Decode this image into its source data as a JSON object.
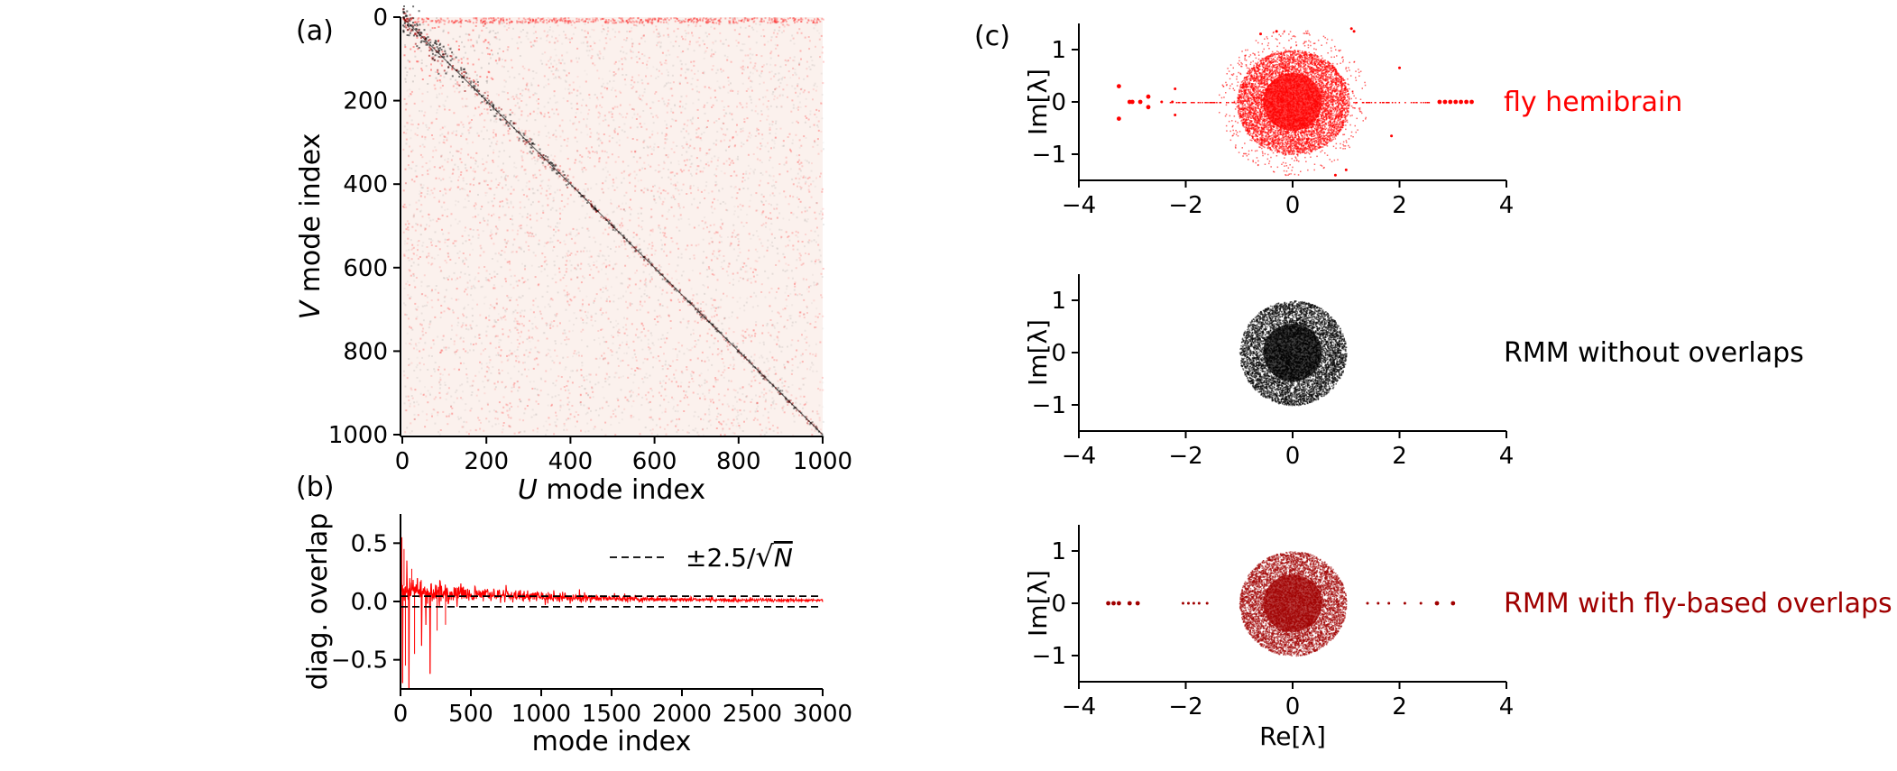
{
  "panels": {
    "a": {
      "label": "(a)"
    },
    "b": {
      "label": "(b)"
    },
    "c": {
      "label": "(c)"
    }
  },
  "colors": {
    "fly": "#ff0000",
    "rmm_none": "#000000",
    "rmm_fly": "#a00000",
    "heatmap_pos": "#ff0000",
    "heatmap_neg": "#000000"
  },
  "chart_data": [
    {
      "id": "a",
      "type": "heatmap",
      "xlabel_italic": "U",
      "xlabel_rest": " mode index",
      "ylabel_italic": "V",
      "ylabel_rest": " mode index",
      "xlim": [
        0,
        1000
      ],
      "ylim": [
        0,
        1000
      ],
      "xticks": [
        0,
        200,
        400,
        600,
        800,
        1000
      ],
      "yticks": [
        0,
        200,
        400,
        600,
        800,
        1000
      ],
      "description_of_values": "overlap matrix between U and V modes; strong diagonal band from (0,0) to (1000,1000), stronger near low indices"
    },
    {
      "id": "b",
      "type": "line",
      "xlabel": "mode index",
      "ylabel": "diag. overlap",
      "xlim": [
        0,
        3000
      ],
      "ylim": [
        -0.75,
        0.75
      ],
      "xticks": [
        0,
        500,
        1000,
        1500,
        2000,
        2500,
        3000
      ],
      "yticks": [
        -0.5,
        0.0,
        0.5
      ],
      "ytick_labels": [
        "−0.5",
        "0.0",
        "0.5"
      ],
      "threshold": 0.0456,
      "legend": {
        "label": "±2.5/√N",
        "prefix": "±2.5/",
        "var": "N",
        "placement": "upper right"
      },
      "series": [
        {
          "color": "#ff0000",
          "envelope": [
            [
              0,
              0.15
            ],
            [
              50,
              0.12
            ],
            [
              100,
              0.09
            ],
            [
              200,
              0.08
            ],
            [
              400,
              0.07
            ],
            [
              600,
              0.06
            ],
            [
              800,
              0.05
            ],
            [
              1000,
              0.04
            ],
            [
              1500,
              0.025
            ],
            [
              2000,
              0.015
            ],
            [
              3000,
              0.01
            ]
          ],
          "spikes": [
            [
              10,
              0.55
            ],
            [
              15,
              -0.7
            ],
            [
              25,
              0.45
            ],
            [
              35,
              -0.55
            ],
            [
              45,
              0.35
            ],
            [
              60,
              -0.75
            ],
            [
              80,
              0.28
            ],
            [
              100,
              -0.45
            ],
            [
              120,
              0.2
            ],
            [
              150,
              -0.38
            ],
            [
              180,
              -0.2
            ],
            [
              210,
              -0.62
            ],
            [
              260,
              -0.25
            ],
            [
              320,
              -0.2
            ]
          ]
        }
      ]
    },
    {
      "id": "c1",
      "type": "scatter",
      "name": "fly hemibrain",
      "color": "#ff0000",
      "ylabel": "Im[λ]",
      "xlim": [
        -4,
        4
      ],
      "ylim": [
        -1.5,
        1.5
      ],
      "xticks": [
        -4,
        -2,
        0,
        2,
        4
      ],
      "yticks": [
        -1,
        0,
        1
      ],
      "tick_labels_x": [
        "−4",
        "−2",
        "0",
        "2",
        "4"
      ],
      "tick_labels_y": [
        "−1",
        "0",
        "1"
      ],
      "bulk": {
        "center": [
          0,
          0
        ],
        "radius": 1.0
      },
      "outliers": [
        [
          -3.25,
          0.3
        ],
        [
          -3.25,
          -0.32
        ],
        [
          -3.05,
          0.0
        ],
        [
          -3.0,
          0.0
        ],
        [
          -2.85,
          0.0
        ],
        [
          -2.7,
          0.1
        ],
        [
          -2.7,
          -0.1
        ],
        [
          -2.45,
          0.0
        ],
        [
          -2.25,
          0.0
        ],
        [
          -2.2,
          0.25
        ],
        [
          -2.2,
          -0.25
        ],
        [
          2.75,
          0
        ],
        [
          2.85,
          0
        ],
        [
          2.95,
          0
        ],
        [
          3.05,
          0
        ],
        [
          3.15,
          0
        ],
        [
          3.25,
          0
        ],
        [
          3.35,
          0
        ],
        [
          2.0,
          0.65
        ],
        [
          1.85,
          -0.65
        ],
        [
          1.1,
          1.4
        ],
        [
          1.15,
          1.35
        ],
        [
          -0.6,
          1.3
        ],
        [
          -0.3,
          1.35
        ],
        [
          0.8,
          -1.4
        ],
        [
          1.0,
          -1.3
        ]
      ]
    },
    {
      "id": "c2",
      "type": "scatter",
      "name": "RMM without overlaps",
      "color": "#000000",
      "ylabel": "Im[λ]",
      "xlim": [
        -4,
        4
      ],
      "ylim": [
        -1.5,
        1.5
      ],
      "xticks": [
        -4,
        -2,
        0,
        2,
        4
      ],
      "yticks": [
        -1,
        0,
        1
      ],
      "tick_labels_x": [
        "−4",
        "−2",
        "0",
        "2",
        "4"
      ],
      "tick_labels_y": [
        "−1",
        "0",
        "1"
      ],
      "bulk": {
        "center": [
          0,
          0
        ],
        "radius": 1.0
      },
      "outliers": []
    },
    {
      "id": "c3",
      "type": "scatter",
      "name": "RMM with fly-based overlaps",
      "color": "#a00000",
      "ylabel": "Im[λ]",
      "xlabel": "Re[λ]",
      "xlim": [
        -4,
        4
      ],
      "ylim": [
        -1.5,
        1.5
      ],
      "xticks": [
        -4,
        -2,
        0,
        2,
        4
      ],
      "yticks": [
        -1,
        0,
        1
      ],
      "tick_labels_x": [
        "−4",
        "−2",
        "0",
        "2",
        "4"
      ],
      "tick_labels_y": [
        "−1",
        "0",
        "1"
      ],
      "bulk": {
        "center": [
          0,
          0
        ],
        "radius": 1.0
      },
      "outliers": [
        [
          -3.45,
          0
        ],
        [
          -3.35,
          0
        ],
        [
          -3.25,
          0
        ],
        [
          -3.05,
          0
        ],
        [
          -2.9,
          0
        ],
        [
          -2.05,
          0
        ],
        [
          -1.95,
          0
        ],
        [
          -1.85,
          0
        ],
        [
          -1.75,
          0
        ],
        [
          -1.6,
          0
        ],
        [
          1.4,
          0
        ],
        [
          1.6,
          0
        ],
        [
          1.8,
          0
        ],
        [
          2.1,
          0
        ],
        [
          2.4,
          0
        ],
        [
          2.7,
          0
        ],
        [
          3.0,
          0
        ]
      ]
    }
  ]
}
